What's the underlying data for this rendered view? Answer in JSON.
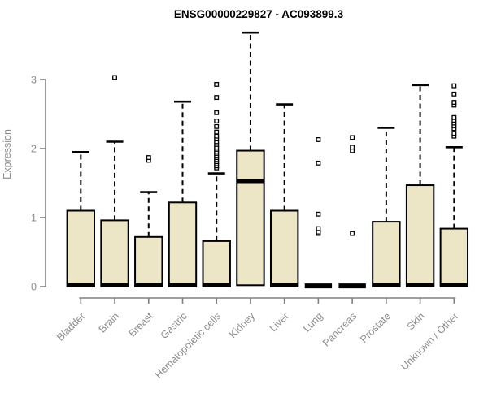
{
  "chart_data": {
    "type": "boxplot",
    "title": "ENSG00000229827 - AC093899.3",
    "xlabel": "",
    "ylabel": "Expression",
    "yticks": [
      0,
      1,
      2,
      3
    ],
    "ylim": [
      0,
      3.75
    ],
    "grid": false,
    "legend": "none",
    "categories": [
      "Bladder",
      "Brain",
      "Breast",
      "Gastric",
      "Hematopoietic cells",
      "Kidney",
      "Liver",
      "Lung",
      "Pancreas",
      "Prostate",
      "Skin",
      "Unknown / Other"
    ],
    "boxes": [
      {
        "category": "Bladder",
        "q1": 0,
        "median": 0.02,
        "q3": 1.1,
        "whisker_low": 0,
        "whisker_high": 1.95,
        "outliers": []
      },
      {
        "category": "Brain",
        "q1": 0,
        "median": 0.02,
        "q3": 0.96,
        "whisker_low": 0,
        "whisker_high": 2.1,
        "outliers": [
          3.03
        ]
      },
      {
        "category": "Breast",
        "q1": 0,
        "median": 0.02,
        "q3": 0.72,
        "whisker_low": 0,
        "whisker_high": 1.37,
        "outliers": [
          1.83,
          1.87
        ]
      },
      {
        "category": "Gastric",
        "q1": 0,
        "median": 0.02,
        "q3": 1.22,
        "whisker_low": 0,
        "whisker_high": 2.68,
        "outliers": []
      },
      {
        "category": "Hematopoietic cells",
        "q1": 0,
        "median": 0.02,
        "q3": 0.66,
        "whisker_low": 0,
        "whisker_high": 1.64,
        "outliers": [
          1.72,
          1.75,
          1.78,
          1.81,
          1.84,
          1.87,
          1.9,
          1.93,
          1.96,
          1.99,
          2.02,
          2.06,
          2.1,
          2.14,
          2.18,
          2.24,
          2.32,
          2.4,
          2.52,
          2.74,
          2.93
        ]
      },
      {
        "category": "Kidney",
        "q1": 0.02,
        "median": 1.53,
        "q3": 1.97,
        "whisker_low": 0,
        "whisker_high": 3.68,
        "outliers": []
      },
      {
        "category": "Liver",
        "q1": 0,
        "median": 0.02,
        "q3": 1.1,
        "whisker_low": 0,
        "whisker_high": 2.64,
        "outliers": []
      },
      {
        "category": "Lung",
        "q1": 0,
        "median": 0.01,
        "q3": 0.02,
        "whisker_low": 0,
        "whisker_high": 0.02,
        "outliers": [
          0.77,
          0.79,
          0.84,
          1.05,
          1.79,
          2.13
        ]
      },
      {
        "category": "Pancreas",
        "q1": 0,
        "median": 0.01,
        "q3": 0.02,
        "whisker_low": 0,
        "whisker_high": 0.02,
        "outliers": [
          0.77,
          1.97,
          2.02,
          2.16
        ]
      },
      {
        "category": "Prostate",
        "q1": 0,
        "median": 0.02,
        "q3": 0.94,
        "whisker_low": 0,
        "whisker_high": 2.3,
        "outliers": []
      },
      {
        "category": "Skin",
        "q1": 0,
        "median": 0.02,
        "q3": 1.47,
        "whisker_low": 0,
        "whisker_high": 2.92,
        "outliers": []
      },
      {
        "category": "Unknown / Other",
        "q1": 0,
        "median": 0.02,
        "q3": 0.84,
        "whisker_low": 0,
        "whisker_high": 2.02,
        "outliers": [
          2.18,
          2.22,
          2.29,
          2.33,
          2.37,
          2.41,
          2.45,
          2.63,
          2.67,
          2.79,
          2.91
        ]
      }
    ],
    "colors": {
      "box_fill": "#ece5c6",
      "box_stroke": "#000000",
      "median": "#000000",
      "whisker": "#000000",
      "outlier_stroke": "#000000",
      "outlier_fill": "#ffffff",
      "axis_line": "#808080",
      "axis_text": "#8c8c8c",
      "title": "#000000",
      "background": "#ffffff"
    }
  }
}
